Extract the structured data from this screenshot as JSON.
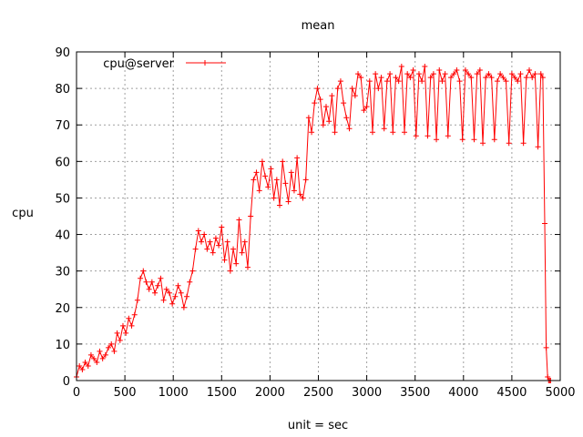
{
  "chart_data": {
    "type": "line",
    "title": "mean",
    "xlabel": "unit = sec",
    "ylabel": "cpu",
    "xlim": [
      0,
      5000
    ],
    "ylim": [
      0,
      90
    ],
    "xticks": [
      0,
      500,
      1000,
      1500,
      2000,
      2500,
      3000,
      3500,
      4000,
      4500,
      5000
    ],
    "yticks": [
      0,
      10,
      20,
      30,
      40,
      50,
      60,
      70,
      80,
      90
    ],
    "grid": true,
    "legend_position": "top-left",
    "series": [
      {
        "name": "cpu@server",
        "color": "#ff0000",
        "marker": "plus",
        "x": [
          0,
          30,
          60,
          90,
          120,
          150,
          180,
          210,
          240,
          270,
          300,
          330,
          360,
          390,
          420,
          450,
          480,
          510,
          540,
          570,
          600,
          630,
          660,
          690,
          720,
          750,
          780,
          810,
          840,
          870,
          900,
          930,
          960,
          990,
          1020,
          1050,
          1080,
          1110,
          1140,
          1170,
          1200,
          1230,
          1260,
          1290,
          1320,
          1350,
          1380,
          1410,
          1440,
          1470,
          1500,
          1530,
          1560,
          1590,
          1620,
          1650,
          1680,
          1710,
          1740,
          1770,
          1800,
          1830,
          1860,
          1890,
          1920,
          1950,
          1980,
          2010,
          2040,
          2070,
          2100,
          2130,
          2160,
          2190,
          2220,
          2250,
          2280,
          2310,
          2340,
          2370,
          2400,
          2430,
          2460,
          2490,
          2520,
          2550,
          2580,
          2610,
          2640,
          2670,
          2700,
          2730,
          2760,
          2790,
          2820,
          2850,
          2880,
          2910,
          2940,
          2970,
          3000,
          3030,
          3060,
          3090,
          3120,
          3150,
          3180,
          3210,
          3240,
          3270,
          3300,
          3330,
          3360,
          3390,
          3420,
          3450,
          3480,
          3510,
          3540,
          3570,
          3600,
          3630,
          3660,
          3690,
          3720,
          3750,
          3780,
          3810,
          3840,
          3870,
          3900,
          3930,
          3960,
          3990,
          4020,
          4050,
          4080,
          4110,
          4140,
          4170,
          4200,
          4230,
          4260,
          4290,
          4320,
          4350,
          4380,
          4410,
          4440,
          4470,
          4500,
          4530,
          4560,
          4590,
          4620,
          4650,
          4680,
          4710,
          4740,
          4770,
          4800,
          4820,
          4840,
          4855,
          4870,
          4880,
          4890,
          4900
        ],
        "values": [
          1,
          4,
          3,
          5,
          4,
          7,
          6,
          5,
          8,
          6,
          7,
          9,
          10,
          8,
          13,
          11,
          15,
          13,
          17,
          15,
          18,
          22,
          28,
          30,
          27,
          25,
          27,
          24,
          26,
          28,
          22,
          25,
          24,
          21,
          23,
          26,
          24,
          20,
          23,
          27,
          30,
          36,
          41,
          38,
          40,
          36,
          38,
          35,
          39,
          37,
          42,
          33,
          38,
          30,
          36,
          32,
          44,
          35,
          38,
          31,
          45,
          55,
          57,
          52,
          60,
          56,
          53,
          58,
          50,
          55,
          48,
          60,
          54,
          49,
          57,
          52,
          61,
          51,
          50,
          55,
          72,
          68,
          76,
          80,
          77,
          70,
          75,
          71,
          78,
          68,
          80,
          82,
          76,
          72,
          69,
          80,
          78,
          84,
          83,
          74,
          75,
          82,
          68,
          84,
          80,
          83,
          69,
          82,
          84,
          68,
          83,
          82,
          86,
          68,
          84,
          83,
          85,
          67,
          84,
          82,
          86,
          67,
          83,
          84,
          66,
          85,
          82,
          84,
          67,
          83,
          84,
          85,
          82,
          66,
          85,
          84,
          83,
          66,
          84,
          85,
          65,
          83,
          84,
          83,
          66,
          82,
          84,
          83,
          82,
          65,
          84,
          83,
          82,
          84,
          65,
          83,
          85,
          83,
          84,
          64,
          84,
          83,
          43,
          9,
          1,
          0,
          0,
          0
        ]
      }
    ]
  }
}
